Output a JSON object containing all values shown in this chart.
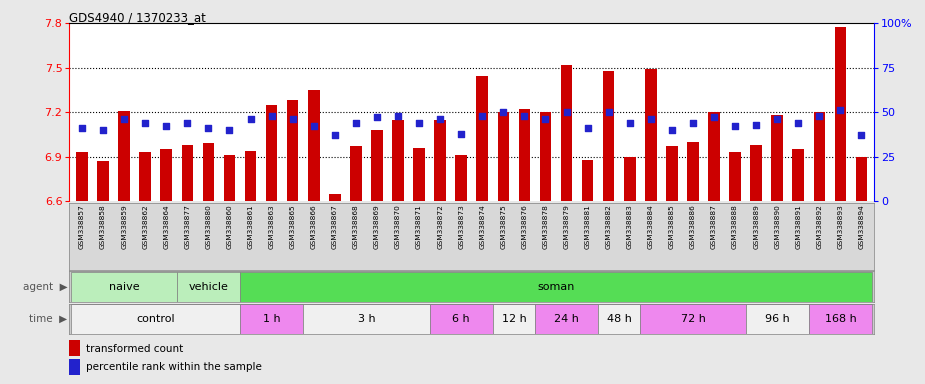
{
  "title": "GDS4940 / 1370233_at",
  "samples": [
    "GSM338857",
    "GSM338858",
    "GSM338859",
    "GSM338862",
    "GSM338864",
    "GSM338877",
    "GSM338880",
    "GSM338860",
    "GSM338861",
    "GSM338863",
    "GSM338865",
    "GSM338866",
    "GSM338867",
    "GSM338868",
    "GSM338869",
    "GSM338870",
    "GSM338871",
    "GSM338872",
    "GSM338873",
    "GSM338874",
    "GSM338875",
    "GSM338876",
    "GSM338878",
    "GSM338879",
    "GSM338881",
    "GSM338882",
    "GSM338883",
    "GSM338884",
    "GSM338885",
    "GSM338886",
    "GSM338887",
    "GSM338888",
    "GSM338889",
    "GSM338890",
    "GSM338891",
    "GSM338892",
    "GSM338893",
    "GSM338894"
  ],
  "transformed_count": [
    6.93,
    6.87,
    7.21,
    6.93,
    6.95,
    6.98,
    6.99,
    6.91,
    6.94,
    7.25,
    7.28,
    7.35,
    6.65,
    6.97,
    7.08,
    7.15,
    6.96,
    7.15,
    6.91,
    7.44,
    7.2,
    7.22,
    7.2,
    7.52,
    6.88,
    7.48,
    6.9,
    7.49,
    6.97,
    7.0,
    7.2,
    6.93,
    6.98,
    7.18,
    6.95,
    7.2,
    7.77,
    6.9
  ],
  "percentile_rank": [
    41,
    40,
    46,
    44,
    42,
    44,
    41,
    40,
    46,
    48,
    46,
    42,
    37,
    44,
    47,
    48,
    44,
    46,
    38,
    48,
    50,
    48,
    46,
    50,
    41,
    50,
    44,
    46,
    40,
    44,
    47,
    42,
    43,
    46,
    44,
    48,
    51,
    37
  ],
  "ylim_left": [
    6.6,
    7.8
  ],
  "ylim_right": [
    0,
    100
  ],
  "yticks_left": [
    6.6,
    6.9,
    7.2,
    7.5,
    7.8
  ],
  "yticks_right": [
    0,
    25,
    50,
    75,
    100
  ],
  "bar_color": "#cc0000",
  "marker_color": "#2222cc",
  "fig_bg": "#e8e8e8",
  "plot_bg": "#ffffff",
  "xtick_bg": "#d8d8d8",
  "agent_groups": [
    {
      "label": "naive",
      "start": 0,
      "end": 5,
      "color": "#bbeebb"
    },
    {
      "label": "vehicle",
      "start": 5,
      "end": 8,
      "color": "#bbeebb"
    },
    {
      "label": "soman",
      "start": 8,
      "end": 38,
      "color": "#55dd55"
    }
  ],
  "time_groups": [
    {
      "label": "control",
      "start": 0,
      "end": 8,
      "color": "#f0f0f0"
    },
    {
      "label": "1 h",
      "start": 8,
      "end": 11,
      "color": "#ee88ee"
    },
    {
      "label": "3 h",
      "start": 11,
      "end": 17,
      "color": "#f0f0f0"
    },
    {
      "label": "6 h",
      "start": 17,
      "end": 20,
      "color": "#ee88ee"
    },
    {
      "label": "12 h",
      "start": 20,
      "end": 22,
      "color": "#f0f0f0"
    },
    {
      "label": "24 h",
      "start": 22,
      "end": 25,
      "color": "#ee88ee"
    },
    {
      "label": "48 h",
      "start": 25,
      "end": 27,
      "color": "#f0f0f0"
    },
    {
      "label": "72 h",
      "start": 27,
      "end": 32,
      "color": "#ee88ee"
    },
    {
      "label": "96 h",
      "start": 32,
      "end": 35,
      "color": "#f0f0f0"
    },
    {
      "label": "168 h",
      "start": 35,
      "end": 38,
      "color": "#ee88ee"
    }
  ]
}
